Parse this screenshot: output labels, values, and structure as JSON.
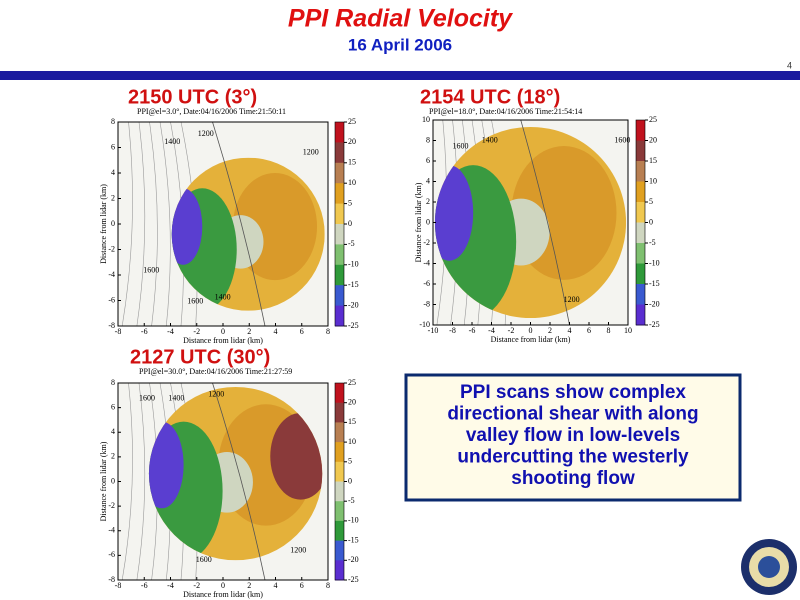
{
  "header": {
    "title": "PPI Radial Velocity",
    "subtitle": "16 April 2006",
    "page_number": "4"
  },
  "panels": [
    {
      "heading": "2150 UTC (3°)",
      "caption": "PPI@el=3.0°, Date:04/16/2006  Time:21:50:11",
      "xlabel": "Distance from lidar (km)",
      "ylabel": "Distance from lidar (km)",
      "xticks": [
        -8,
        -6,
        -4,
        -2,
        0,
        2,
        4,
        6,
        8
      ],
      "yticks": [
        8,
        6,
        4,
        2,
        0,
        -2,
        -4,
        -6,
        -8
      ],
      "colorbar_ticks": [
        25,
        20,
        15,
        10,
        5,
        0,
        -5,
        -10,
        -15,
        -20,
        -25
      ],
      "contour_labels": [
        "1400",
        "1200",
        "1200",
        "1600",
        "1600",
        "1400"
      ]
    },
    {
      "heading": "2154 UTC (18°)",
      "caption": "PPI@el=18.0°, Date:04/16/2006  Time:21:54:14",
      "xlabel": "Distance from lidar (km)",
      "ylabel": "Distance from lidar (km)",
      "xticks": [
        -10,
        -8,
        -6,
        -4,
        -2,
        0,
        2,
        4,
        6,
        8,
        10
      ],
      "yticks": [
        10,
        8,
        6,
        4,
        2,
        0,
        -2,
        -4,
        -6,
        -8,
        -10
      ],
      "colorbar_ticks": [
        25,
        20,
        15,
        10,
        5,
        0,
        -5,
        -10,
        -15,
        -20,
        -25
      ],
      "contour_labels": [
        "1600",
        "1400",
        "1600",
        "1200"
      ]
    },
    {
      "heading": "2127 UTC (30°)",
      "caption": "PPI@el=30.0°, Date:04/16/2006  Time:21:27:59",
      "xlabel": "Distance from lidar (km)",
      "ylabel": "Distance from lidar (km)",
      "xticks": [
        -8,
        -6,
        -4,
        -2,
        0,
        2,
        4,
        6,
        8
      ],
      "yticks": [
        8,
        6,
        4,
        2,
        0,
        -2,
        -4,
        -6,
        -8
      ],
      "colorbar_ticks": [
        25,
        20,
        15,
        10,
        5,
        0,
        -5,
        -10,
        -15,
        -20,
        -25
      ],
      "contour_labels": [
        "1600",
        "1400",
        "1200",
        "1200",
        "1600"
      ]
    }
  ],
  "callout": {
    "lines": [
      "PPI scans show complex",
      "directional shear with along",
      "valley flow in low-levels",
      "undercutting the westerly",
      "shooting flow"
    ]
  }
}
